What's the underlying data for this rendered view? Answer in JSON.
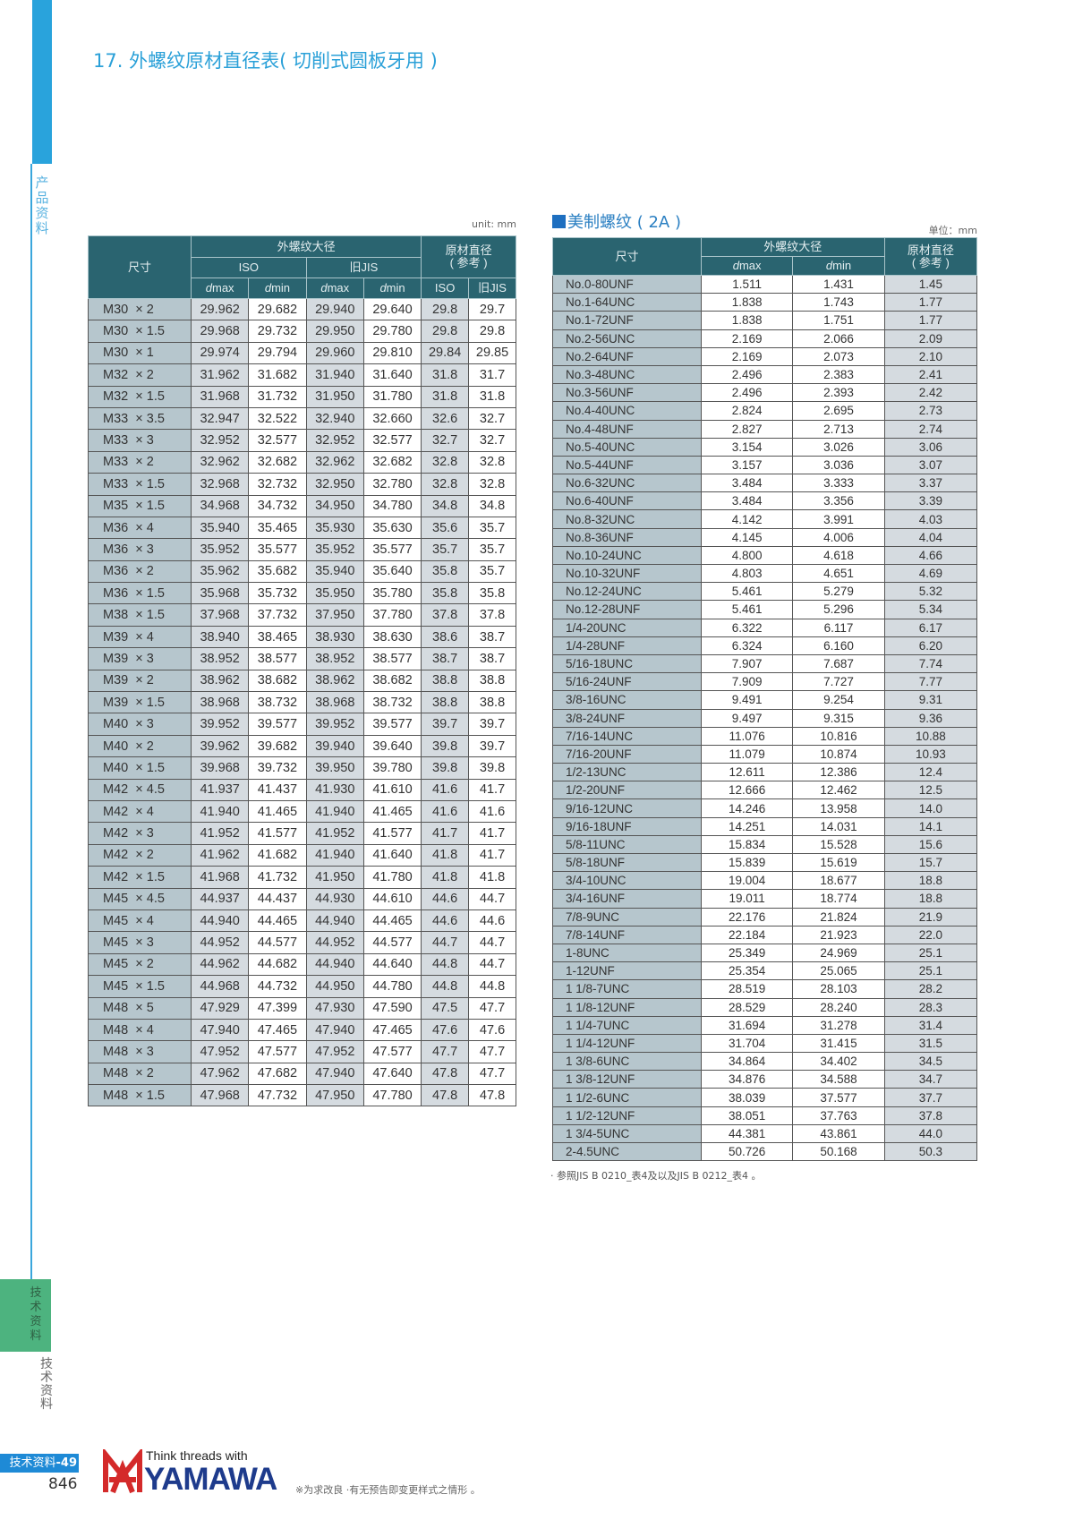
{
  "sidebar": {
    "top_label": "产品资料",
    "tab_label": "技术资料",
    "section_label": "技术资料"
  },
  "title": "17. 外螺纹原材直径表( 切削式圆板牙用 )",
  "metric_table": {
    "unit": "unit: mm",
    "headers": {
      "size": "尺寸",
      "major_dia": "外螺纹大径",
      "iso": "ISO",
      "old_jis": "旧JIS",
      "blank_dia": "原材直径",
      "reference": "( 参考 )",
      "dmax_d": "d",
      "dmax_rest": "max",
      "dmin_d": "d",
      "dmin_rest": "min",
      "blank_iso": "ISO",
      "blank_jis": "旧JIS"
    },
    "rows": [
      [
        "M30  × 2",
        "29.962",
        "29.682",
        "29.940",
        "29.640",
        "29.8",
        "29.7"
      ],
      [
        "M30  × 1.5",
        "29.968",
        "29.732",
        "29.950",
        "29.780",
        "29.8",
        "29.8"
      ],
      [
        "M30  × 1",
        "29.974",
        "29.794",
        "29.960",
        "29.810",
        "29.84",
        "29.85"
      ],
      [
        "M32  × 2",
        "31.962",
        "31.682",
        "31.940",
        "31.640",
        "31.8",
        "31.7"
      ],
      [
        "M32  × 1.5",
        "31.968",
        "31.732",
        "31.950",
        "31.780",
        "31.8",
        "31.8"
      ],
      [
        "M33  × 3.5",
        "32.947",
        "32.522",
        "32.940",
        "32.660",
        "32.6",
        "32.7"
      ],
      [
        "M33  × 3",
        "32.952",
        "32.577",
        "32.952",
        "32.577",
        "32.7",
        "32.7"
      ],
      [
        "M33  × 2",
        "32.962",
        "32.682",
        "32.962",
        "32.682",
        "32.8",
        "32.8"
      ],
      [
        "M33  × 1.5",
        "32.968",
        "32.732",
        "32.950",
        "32.780",
        "32.8",
        "32.8"
      ],
      [
        "M35  × 1.5",
        "34.968",
        "34.732",
        "34.950",
        "34.780",
        "34.8",
        "34.8"
      ],
      [
        "M36  × 4",
        "35.940",
        "35.465",
        "35.930",
        "35.630",
        "35.6",
        "35.7"
      ],
      [
        "M36  × 3",
        "35.952",
        "35.577",
        "35.952",
        "35.577",
        "35.7",
        "35.7"
      ],
      [
        "M36  × 2",
        "35.962",
        "35.682",
        "35.940",
        "35.640",
        "35.8",
        "35.7"
      ],
      [
        "M36  × 1.5",
        "35.968",
        "35.732",
        "35.950",
        "35.780",
        "35.8",
        "35.8"
      ],
      [
        "M38  × 1.5",
        "37.968",
        "37.732",
        "37.950",
        "37.780",
        "37.8",
        "37.8"
      ],
      [
        "M39  × 4",
        "38.940",
        "38.465",
        "38.930",
        "38.630",
        "38.6",
        "38.7"
      ],
      [
        "M39  × 3",
        "38.952",
        "38.577",
        "38.952",
        "38.577",
        "38.7",
        "38.7"
      ],
      [
        "M39  × 2",
        "38.962",
        "38.682",
        "38.962",
        "38.682",
        "38.8",
        "38.8"
      ],
      [
        "M39  × 1.5",
        "38.968",
        "38.732",
        "38.968",
        "38.732",
        "38.8",
        "38.8"
      ],
      [
        "M40  × 3",
        "39.952",
        "39.577",
        "39.952",
        "39.577",
        "39.7",
        "39.7"
      ],
      [
        "M40  × 2",
        "39.962",
        "39.682",
        "39.940",
        "39.640",
        "39.8",
        "39.7"
      ],
      [
        "M40  × 1.5",
        "39.968",
        "39.732",
        "39.950",
        "39.780",
        "39.8",
        "39.8"
      ],
      [
        "M42  × 4.5",
        "41.937",
        "41.437",
        "41.930",
        "41.610",
        "41.6",
        "41.7"
      ],
      [
        "M42  × 4",
        "41.940",
        "41.465",
        "41.940",
        "41.465",
        "41.6",
        "41.6"
      ],
      [
        "M42  × 3",
        "41.952",
        "41.577",
        "41.952",
        "41.577",
        "41.7",
        "41.7"
      ],
      [
        "M42  × 2",
        "41.962",
        "41.682",
        "41.940",
        "41.640",
        "41.8",
        "41.7"
      ],
      [
        "M42  × 1.5",
        "41.968",
        "41.732",
        "41.950",
        "41.780",
        "41.8",
        "41.8"
      ],
      [
        "M45  × 4.5",
        "44.937",
        "44.437",
        "44.930",
        "44.610",
        "44.6",
        "44.7"
      ],
      [
        "M45  × 4",
        "44.940",
        "44.465",
        "44.940",
        "44.465",
        "44.6",
        "44.6"
      ],
      [
        "M45  × 3",
        "44.952",
        "44.577",
        "44.952",
        "44.577",
        "44.7",
        "44.7"
      ],
      [
        "M45  × 2",
        "44.962",
        "44.682",
        "44.940",
        "44.640",
        "44.8",
        "44.7"
      ],
      [
        "M45  × 1.5",
        "44.968",
        "44.732",
        "44.950",
        "44.780",
        "44.8",
        "44.8"
      ],
      [
        "M48  × 5",
        "47.929",
        "47.399",
        "47.930",
        "47.590",
        "47.5",
        "47.7"
      ],
      [
        "M48  × 4",
        "47.940",
        "47.465",
        "47.940",
        "47.465",
        "47.6",
        "47.6"
      ],
      [
        "M48  × 3",
        "47.952",
        "47.577",
        "47.952",
        "47.577",
        "47.7",
        "47.7"
      ],
      [
        "M48  × 2",
        "47.962",
        "47.682",
        "47.940",
        "47.640",
        "47.8",
        "47.7"
      ],
      [
        "M48  × 1.5",
        "47.968",
        "47.732",
        "47.950",
        "47.780",
        "47.8",
        "47.8"
      ]
    ]
  },
  "us_table": {
    "title": "美制螺纹 ( 2A )",
    "unit": "单位：mm",
    "headers": {
      "size": "尺寸",
      "major_dia": "外螺纹大径",
      "blank_dia": "原材直径",
      "reference": "( 参考 )",
      "dmax_d": "d",
      "dmax_rest": "max",
      "dmin_d": "d",
      "dmin_rest": "min"
    },
    "rows": [
      [
        "No.0-80UNF",
        "1.511",
        "1.431",
        "1.45"
      ],
      [
        "No.1-64UNC",
        "1.838",
        "1.743",
        "1.77"
      ],
      [
        "No.1-72UNF",
        "1.838",
        "1.751",
        "1.77"
      ],
      [
        "No.2-56UNC",
        "2.169",
        "2.066",
        "2.09"
      ],
      [
        "No.2-64UNF",
        "2.169",
        "2.073",
        "2.10"
      ],
      [
        "No.3-48UNC",
        "2.496",
        "2.383",
        "2.41"
      ],
      [
        "No.3-56UNF",
        "2.496",
        "2.393",
        "2.42"
      ],
      [
        "No.4-40UNC",
        "2.824",
        "2.695",
        "2.73"
      ],
      [
        "No.4-48UNF",
        "2.827",
        "2.713",
        "2.74"
      ],
      [
        "No.5-40UNC",
        "3.154",
        "3.026",
        "3.06"
      ],
      [
        "No.5-44UNF",
        "3.157",
        "3.036",
        "3.07"
      ],
      [
        "No.6-32UNC",
        "3.484",
        "3.333",
        "3.37"
      ],
      [
        "No.6-40UNF",
        "3.484",
        "3.356",
        "3.39"
      ],
      [
        "No.8-32UNC",
        "4.142",
        "3.991",
        "4.03"
      ],
      [
        "No.8-36UNF",
        "4.145",
        "4.006",
        "4.04"
      ],
      [
        "No.10-24UNC",
        "4.800",
        "4.618",
        "4.66"
      ],
      [
        "No.10-32UNF",
        "4.803",
        "4.651",
        "4.69"
      ],
      [
        "No.12-24UNC",
        "5.461",
        "5.279",
        "5.32"
      ],
      [
        "No.12-28UNF",
        "5.461",
        "5.296",
        "5.34"
      ],
      [
        "1/4-20UNC",
        "6.322",
        "6.117",
        "6.17"
      ],
      [
        "1/4-28UNF",
        "6.324",
        "6.160",
        "6.20"
      ],
      [
        "5/16-18UNC",
        "7.907",
        "7.687",
        "7.74"
      ],
      [
        "5/16-24UNF",
        "7.909",
        "7.727",
        "7.77"
      ],
      [
        "3/8-16UNC",
        "9.491",
        "9.254",
        "9.31"
      ],
      [
        "3/8-24UNF",
        "9.497",
        "9.315",
        "9.36"
      ],
      [
        "7/16-14UNC",
        "11.076",
        "10.816",
        "10.88"
      ],
      [
        "7/16-20UNF",
        "11.079",
        "10.874",
        "10.93"
      ],
      [
        "1/2-13UNC",
        "12.611",
        "12.386",
        "12.4"
      ],
      [
        "1/2-20UNF",
        "12.666",
        "12.462",
        "12.5"
      ],
      [
        "9/16-12UNC",
        "14.246",
        "13.958",
        "14.0"
      ],
      [
        "9/16-18UNF",
        "14.251",
        "14.031",
        "14.1"
      ],
      [
        "5/8-11UNC",
        "15.834",
        "15.528",
        "15.6"
      ],
      [
        "5/8-18UNF",
        "15.839",
        "15.619",
        "15.7"
      ],
      [
        "3/4-10UNC",
        "19.004",
        "18.677",
        "18.8"
      ],
      [
        "3/4-16UNF",
        "19.011",
        "18.774",
        "18.8"
      ],
      [
        "7/8-9UNC",
        "22.176",
        "21.824",
        "21.9"
      ],
      [
        "7/8-14UNF",
        "22.184",
        "21.923",
        "22.0"
      ],
      [
        "1-8UNC",
        "25.349",
        "24.969",
        "25.1"
      ],
      [
        "1-12UNF",
        "25.354",
        "25.065",
        "25.1"
      ],
      [
        "1 1/8-7UNC",
        "28.519",
        "28.103",
        "28.2"
      ],
      [
        "1 1/8-12UNF",
        "28.529",
        "28.240",
        "28.3"
      ],
      [
        "1 1/4-7UNC",
        "31.694",
        "31.278",
        "31.4"
      ],
      [
        "1 1/4-12UNF",
        "31.704",
        "31.415",
        "31.5"
      ],
      [
        "1 3/8-6UNC",
        "34.864",
        "34.402",
        "34.5"
      ],
      [
        "1 3/8-12UNF",
        "34.876",
        "34.588",
        "34.7"
      ],
      [
        "1 1/2-6UNC",
        "38.039",
        "37.577",
        "37.7"
      ],
      [
        "1 1/2-12UNF",
        "38.051",
        "37.763",
        "37.8"
      ],
      [
        "1 3/4-5UNC",
        "44.381",
        "43.861",
        "44.0"
      ],
      [
        "2-4.5UNC",
        "50.726",
        "50.168",
        "50.3"
      ]
    ],
    "footnote": "·  参照JIS B 0210_表4及以及JIS B 0212_表4 。"
  },
  "footer": {
    "section_page_prefix": "技术资料",
    "section_page_num": "-49",
    "page_number": "846",
    "tagline": "Think threads with",
    "brand": "YAMAWA",
    "notice": "※为求改良 ·有无预告即变更样式之情形 。"
  },
  "colors": {
    "accent_blue": "#29a3dc",
    "header_teal": "#2a6470",
    "size_column": "#b6c6cd",
    "tab_green": "#4db37f",
    "brand_red": "#d42a2a",
    "brand_navy": "#1e3b8c"
  }
}
